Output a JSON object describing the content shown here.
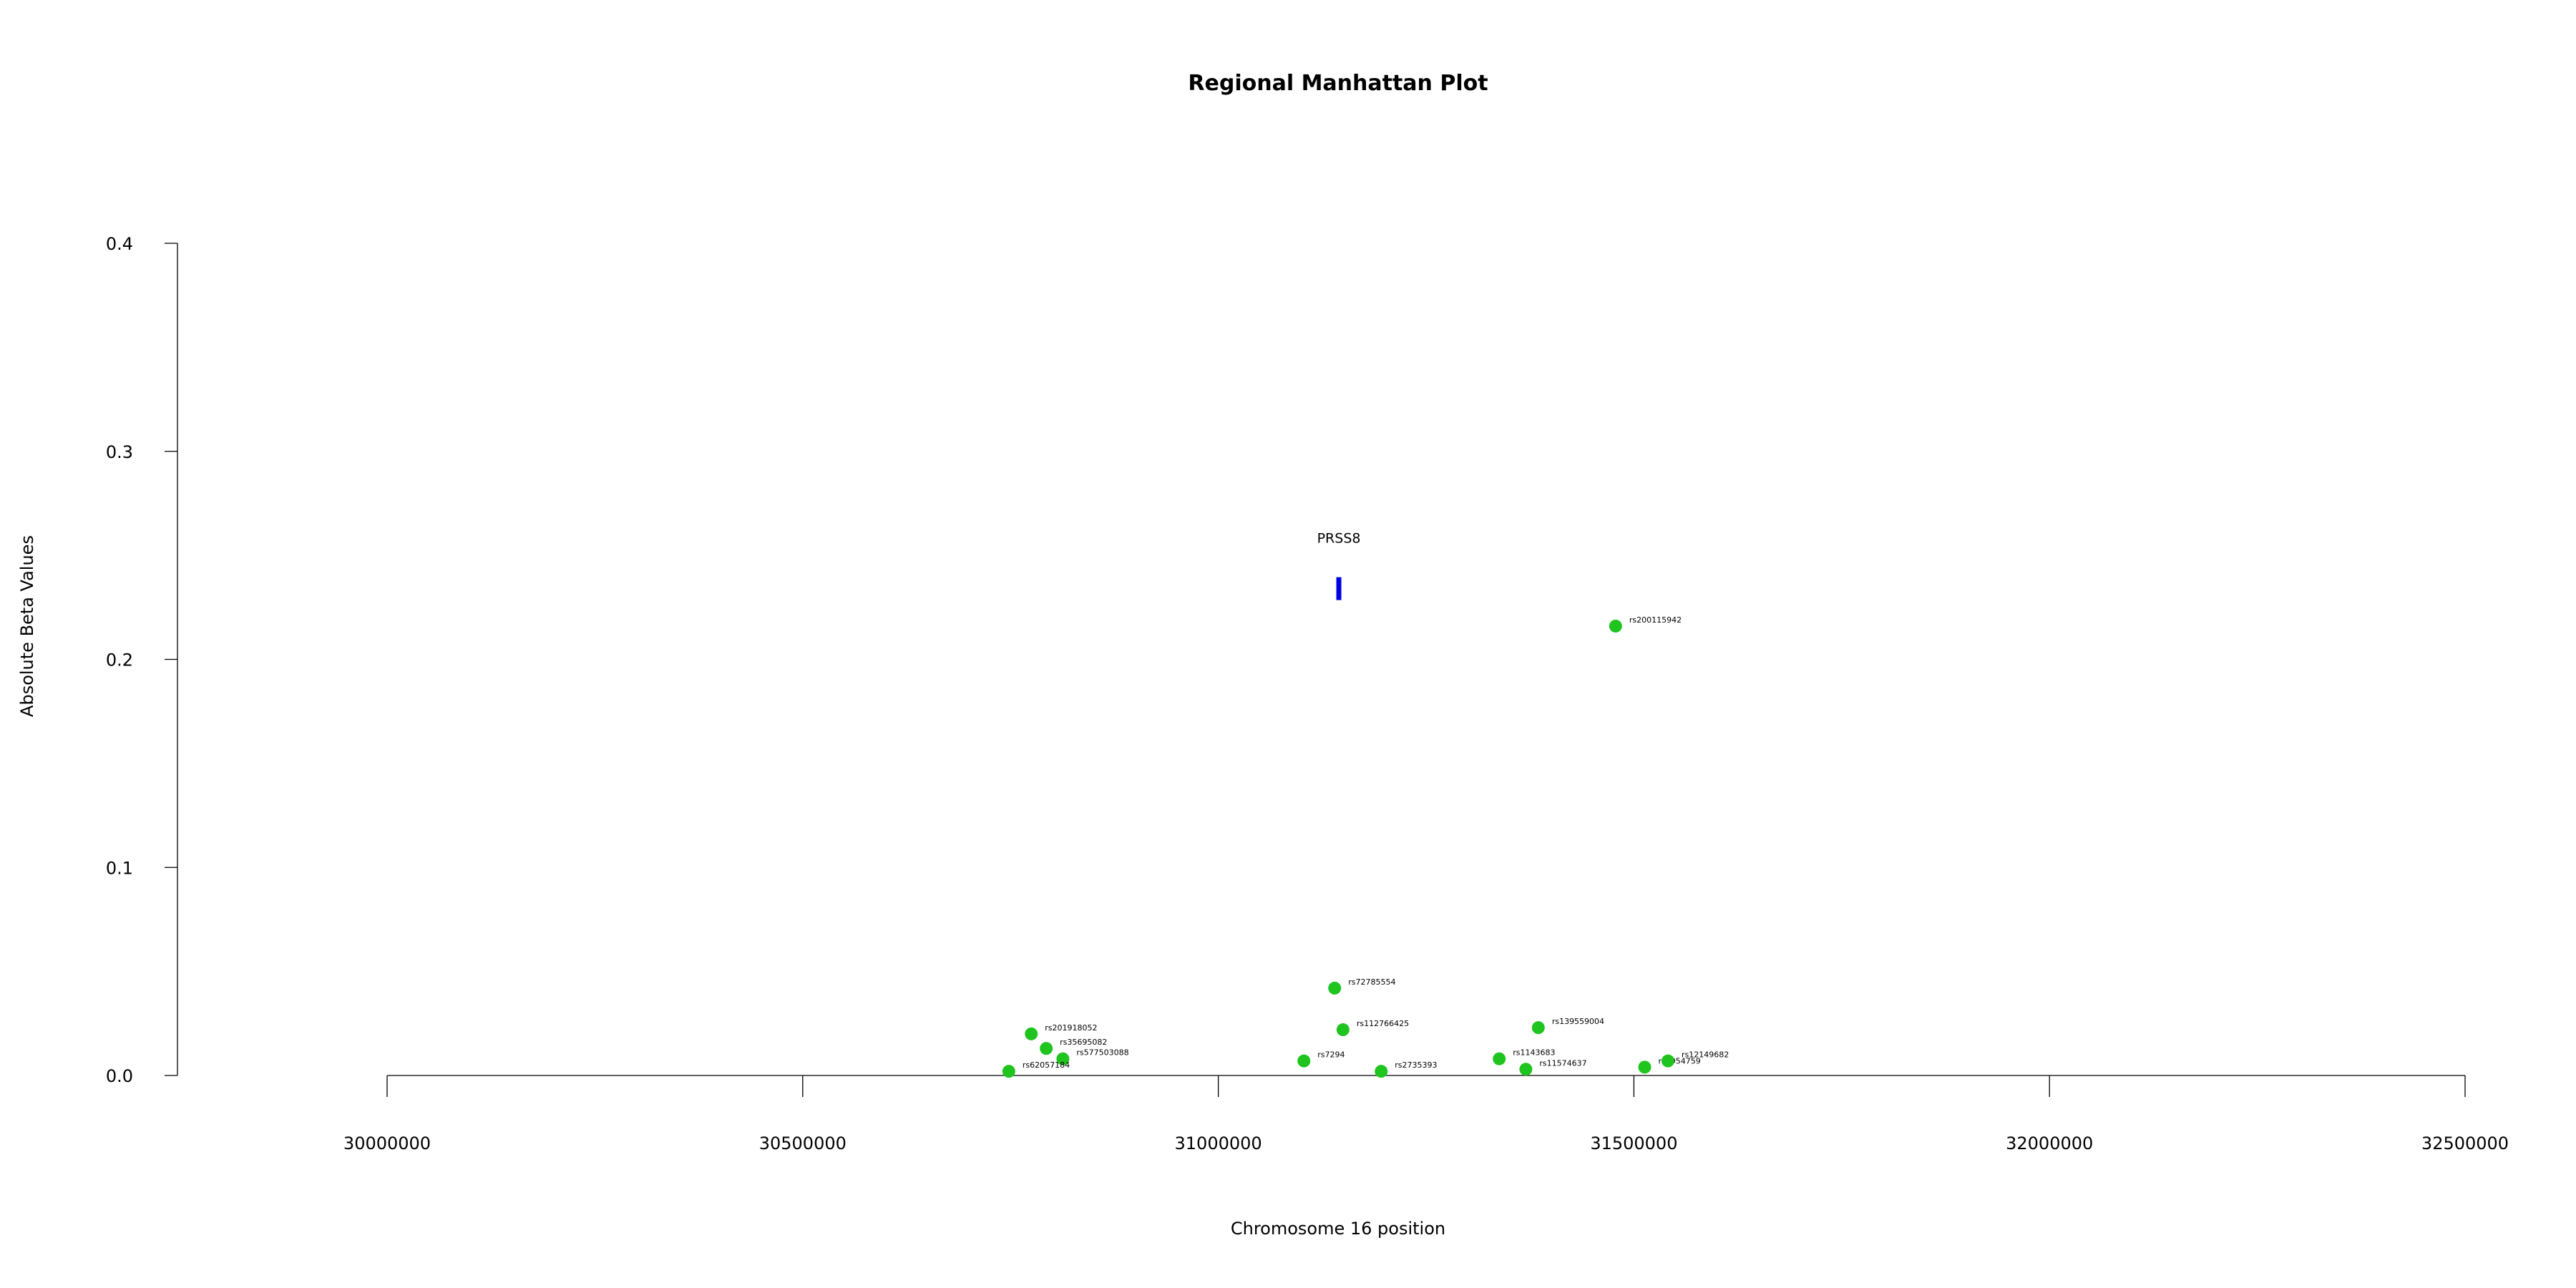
{
  "chart_data": {
    "type": "scatter",
    "title": "Regional Manhattan Plot",
    "xlabel": "Chromosome 16 position",
    "ylabel": "Absolute Beta Values",
    "xlim": [
      30000000,
      32500000
    ],
    "ylim": [
      0,
      0.4
    ],
    "x_ticks": [
      30000000,
      30500000,
      31000000,
      31500000,
      32000000,
      32500000
    ],
    "x_tick_labels": [
      "30000000",
      "30500000",
      "31000000",
      "31500000",
      "32000000",
      "32500000"
    ],
    "y_ticks": [
      0.0,
      0.1,
      0.2,
      0.3,
      0.4
    ],
    "y_tick_labels": [
      "0.0",
      "0.1",
      "0.2",
      "0.3",
      "0.4"
    ],
    "point_color": "#1fc41f",
    "gene_color": "#0000e0",
    "gene": {
      "name": "PRSS8",
      "position": 31145000,
      "y": 0.234
    },
    "points": [
      {
        "label": "rs200115942",
        "x": 31478000,
        "y": 0.216
      },
      {
        "label": "rs72785554",
        "x": 31140000,
        "y": 0.042
      },
      {
        "label": "rs139559004",
        "x": 31385000,
        "y": 0.023
      },
      {
        "label": "rs112766425",
        "x": 31150000,
        "y": 0.022
      },
      {
        "label": "rs201918052",
        "x": 30775000,
        "y": 0.02
      },
      {
        "label": "rs35695082",
        "x": 30793000,
        "y": 0.013
      },
      {
        "label": "rs577503088",
        "x": 30813000,
        "y": 0.008
      },
      {
        "label": "rs62057184",
        "x": 30748000,
        "y": 0.002
      },
      {
        "label": "rs7294",
        "x": 31103000,
        "y": 0.007
      },
      {
        "label": "rs2735393",
        "x": 31196000,
        "y": 0.002
      },
      {
        "label": "rs1143683",
        "x": 31338000,
        "y": 0.008
      },
      {
        "label": "rs11574637",
        "x": 31370000,
        "y": 0.003
      },
      {
        "label": "rs3954759",
        "x": 31513000,
        "y": 0.004
      },
      {
        "label": "rs12149682",
        "x": 31541000,
        "y": 0.007
      }
    ]
  }
}
